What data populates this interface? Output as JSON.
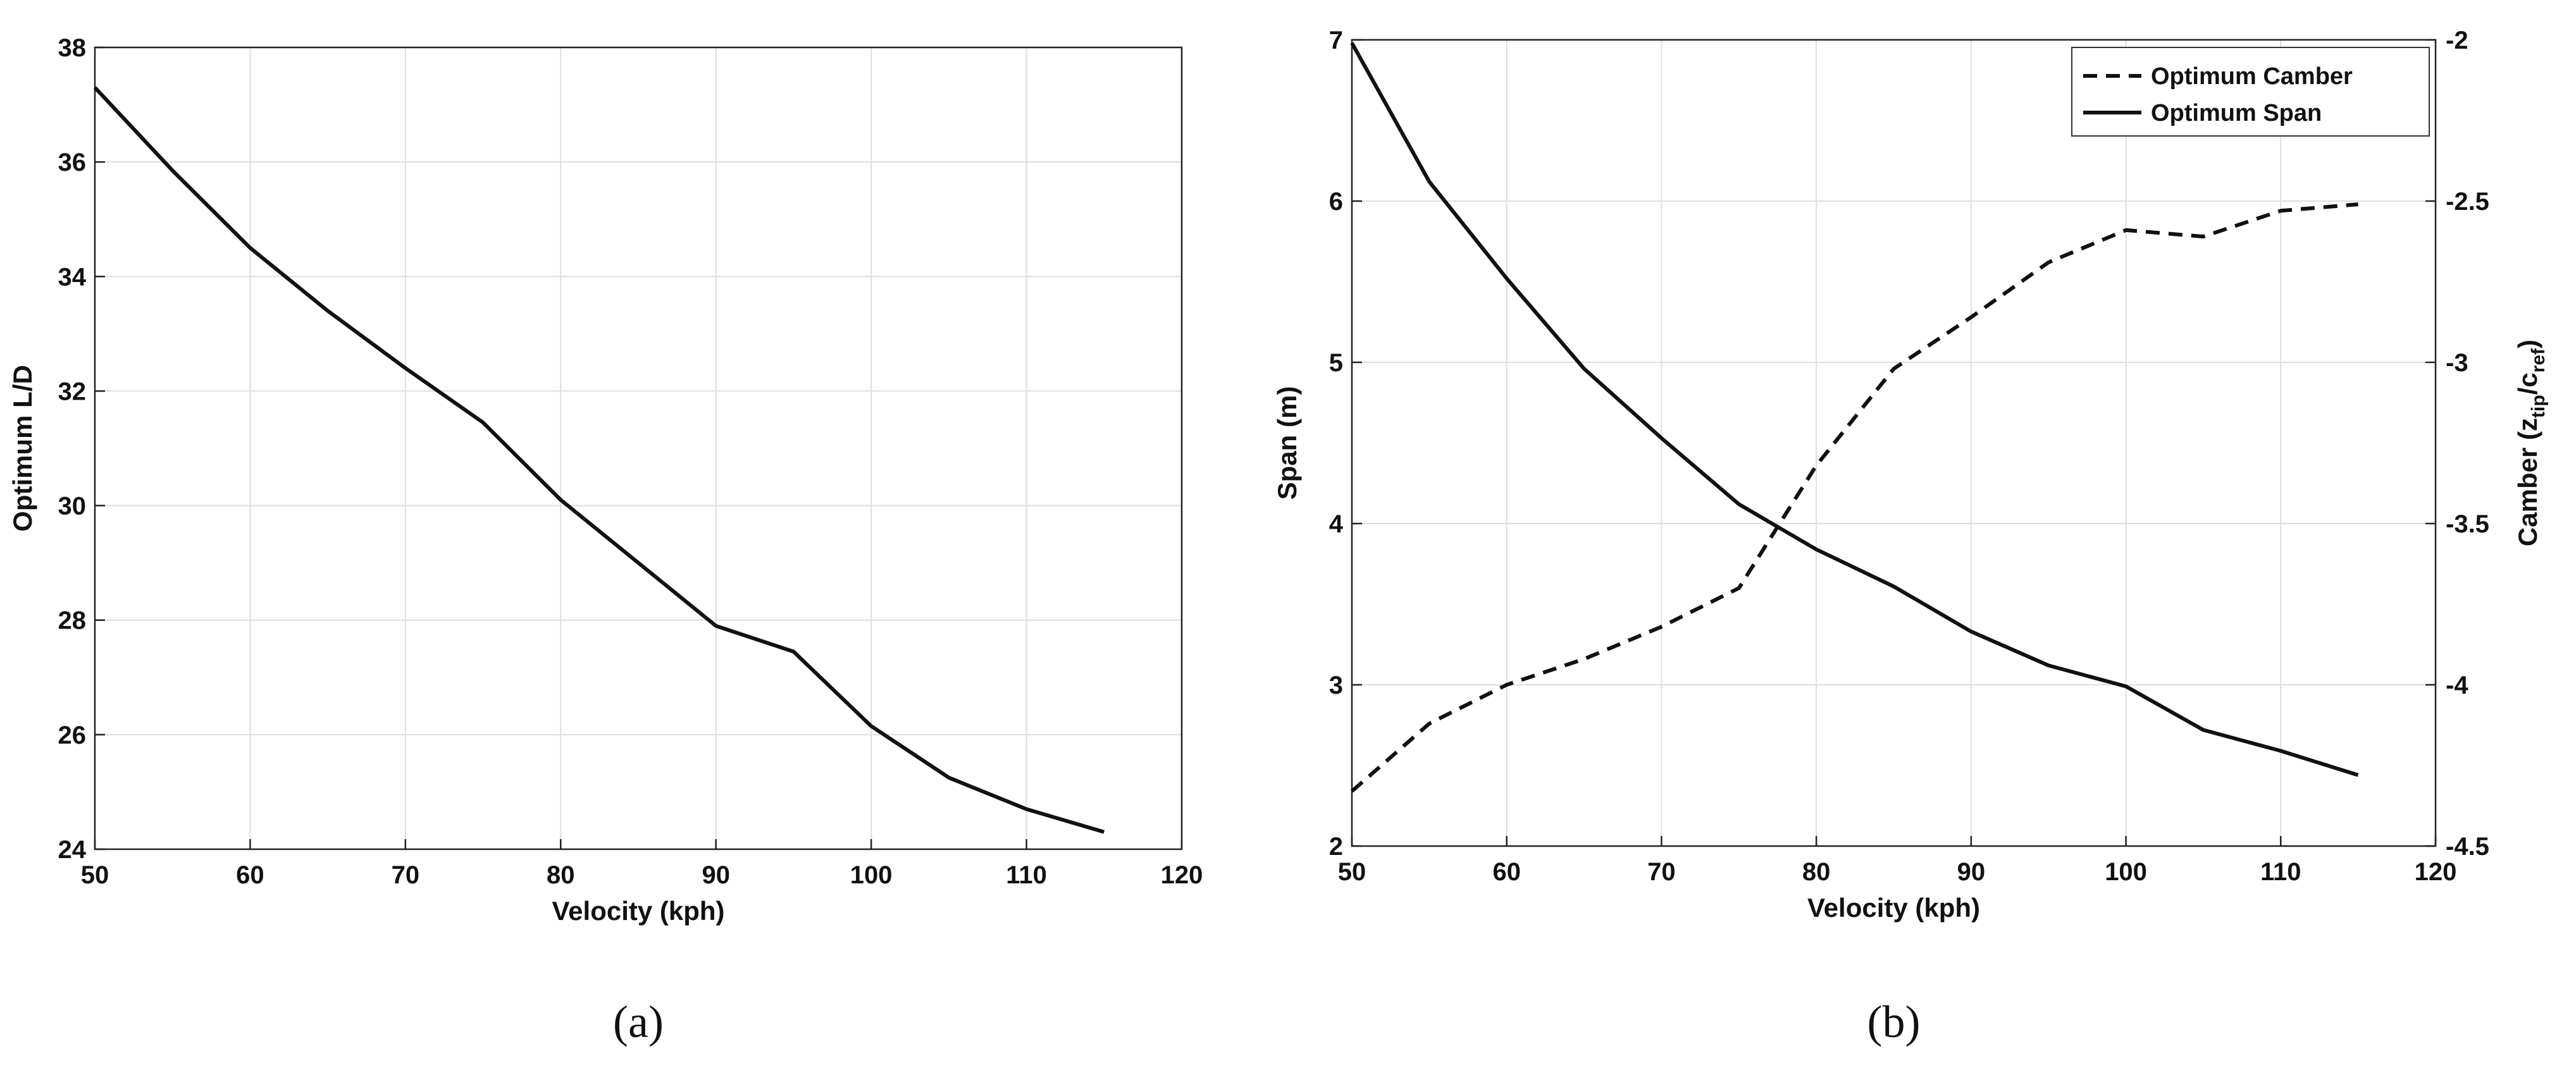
{
  "chart_data": [
    {
      "type": "line",
      "xlabel": "Velocity (kph)",
      "ylabel": "Optimum L/D",
      "xlim": [
        50,
        120
      ],
      "ylim": [
        24,
        38
      ],
      "xticks": [
        "50",
        "60",
        "70",
        "80",
        "90",
        "100",
        "110",
        "120"
      ],
      "yticks": [
        "24",
        "26",
        "28",
        "30",
        "32",
        "34",
        "36",
        "38"
      ],
      "grid": true,
      "caption": "(a)",
      "series": [
        {
          "style": "solid",
          "color": "#111111",
          "x": [
            50,
            55,
            60,
            65,
            70,
            75,
            80,
            85,
            90,
            95,
            100,
            105,
            110,
            115
          ],
          "y": [
            37.3,
            35.85,
            34.5,
            33.4,
            32.4,
            31.45,
            30.1,
            29.0,
            27.9,
            27.45,
            26.15,
            25.25,
            24.7,
            24.3
          ]
        }
      ]
    },
    {
      "type": "line",
      "xlabel": "Velocity (kph)",
      "ylabel": "Span (m)",
      "ylabel_right": {
        "main": "Camber (z",
        "sub1": "tip",
        "mid": "/c",
        "sub2": "ref",
        "end": ")"
      },
      "xlim": [
        50,
        120
      ],
      "ylim": [
        2,
        7
      ],
      "ylim_right": [
        -4.5,
        -2
      ],
      "xticks": [
        "50",
        "60",
        "70",
        "80",
        "90",
        "100",
        "110",
        "120"
      ],
      "yticks": [
        "2",
        "3",
        "4",
        "5",
        "6",
        "7"
      ],
      "yticks_right": [
        "-4.5",
        "-4",
        "-3.5",
        "-3",
        "-2.5",
        "-2"
      ],
      "grid": true,
      "legend": "top-right",
      "caption": "(b)",
      "series": [
        {
          "name": "Optimum Camber",
          "style": "dashed",
          "axis": "right",
          "color": "#111111",
          "x": [
            50,
            55,
            60,
            65,
            70,
            75,
            80,
            85,
            90,
            95,
            100,
            105,
            110,
            115
          ],
          "y": [
            -4.33,
            -4.12,
            -4.0,
            -3.92,
            -3.82,
            -3.7,
            -3.32,
            -3.02,
            -2.86,
            -2.69,
            -2.59,
            -2.61,
            -2.53,
            -2.51
          ]
        },
        {
          "name": "Optimum Span",
          "style": "solid",
          "axis": "left",
          "color": "#111111",
          "x": [
            50,
            55,
            60,
            65,
            70,
            75,
            80,
            85,
            90,
            95,
            100,
            105,
            110,
            115
          ],
          "y": [
            6.98,
            6.12,
            5.52,
            4.96,
            4.53,
            4.12,
            3.84,
            3.61,
            3.33,
            3.12,
            2.99,
            2.72,
            2.59,
            2.44
          ]
        }
      ]
    }
  ]
}
